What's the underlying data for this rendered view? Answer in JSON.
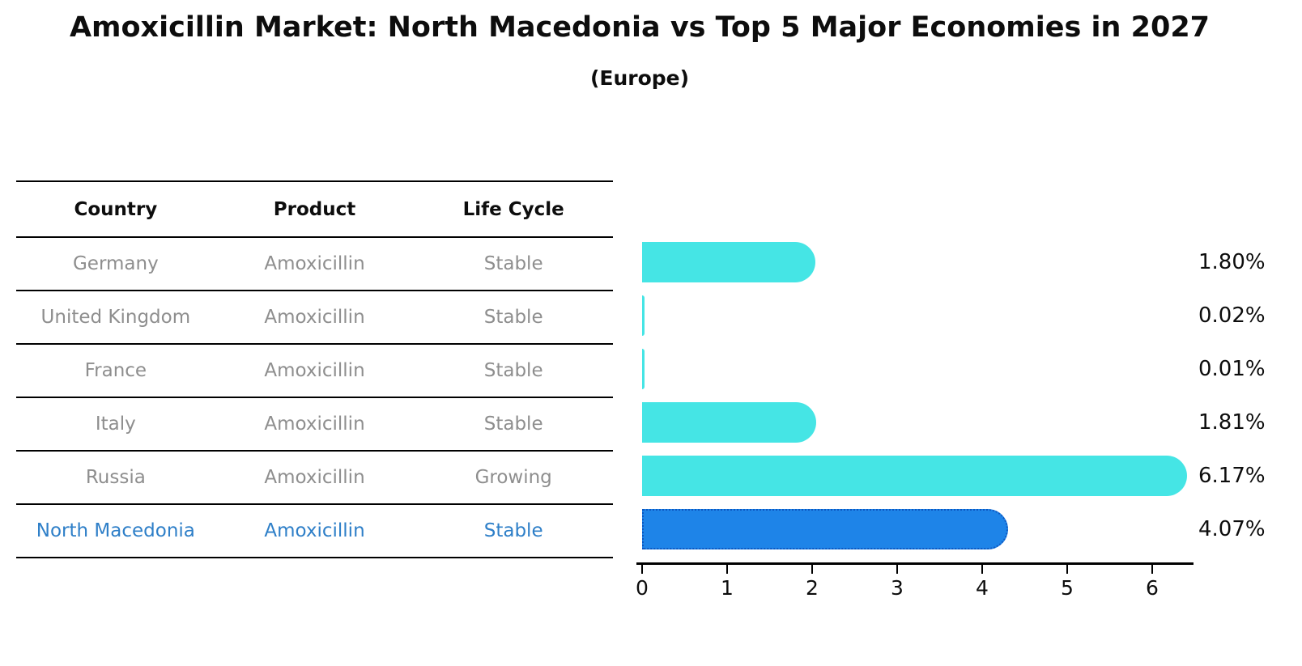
{
  "chart_data": {
    "type": "bar",
    "orientation": "horizontal",
    "title": "Amoxicillin Market: North Macedonia vs Top 5 Major Economies in 2027",
    "subtitle": "(Europe)",
    "categories": [
      "Germany",
      "United Kingdom",
      "France",
      "Italy",
      "Russia",
      "North Macedonia"
    ],
    "values": [
      1.8,
      0.02,
      0.01,
      1.81,
      6.17,
      4.07
    ],
    "value_labels": [
      "1.80%",
      "0.02%",
      "0.01%",
      "1.81%",
      "6.17%",
      "4.07%"
    ],
    "x_ticks": [
      "0",
      "1",
      "2",
      "3",
      "4",
      "5",
      "6"
    ],
    "xlim": [
      0,
      6.5
    ],
    "highlight_index": 5,
    "grid": false,
    "legend_position": "none"
  },
  "table": {
    "headers": [
      "Country",
      "Product",
      "Life Cycle"
    ],
    "rows": [
      {
        "country": "Germany",
        "product": "Amoxicillin",
        "life_cycle": "Stable"
      },
      {
        "country": "United Kingdom",
        "product": "Amoxicillin",
        "life_cycle": "Stable"
      },
      {
        "country": "France",
        "product": "Amoxicillin",
        "life_cycle": "Stable"
      },
      {
        "country": "Italy",
        "product": "Amoxicillin",
        "life_cycle": "Stable"
      },
      {
        "country": "Russia",
        "product": "Amoxicillin",
        "life_cycle": "Growing"
      },
      {
        "country": "North Macedonia",
        "product": "Amoxicillin",
        "life_cycle": "Stable"
      }
    ]
  },
  "colors": {
    "bar": "#45e5e5",
    "highlight_bar": "#1e84e8",
    "highlight_border": "#0e57c0",
    "highlight_text": "#2e7fc8",
    "muted_text": "#8e8e8e",
    "text": "#0d0d0d",
    "background": "#ffffff"
  }
}
